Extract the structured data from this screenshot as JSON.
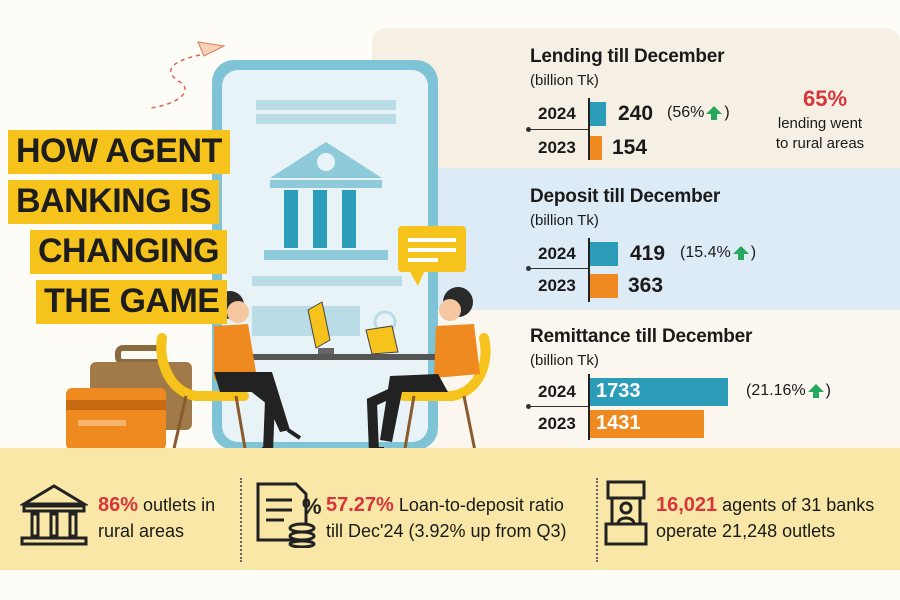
{
  "headline": [
    "HOW AGENT",
    "BANKING IS",
    "CHANGING",
    "THE GAME"
  ],
  "lending": {
    "title": "Lending till December",
    "unit": "(billion Tk)",
    "rows": [
      {
        "year": "2024",
        "value": "240",
        "change": "(56%",
        "close": ")"
      },
      {
        "year": "2023",
        "value": "154"
      }
    ]
  },
  "rural_callout": {
    "pct": "65%",
    "text_line1": "lending went",
    "text_line2": "to rural areas"
  },
  "deposit": {
    "title": "Deposit till December",
    "unit": "(billion Tk)",
    "rows": [
      {
        "year": "2024",
        "value": "419",
        "change": "(15.4%",
        "close": ")"
      },
      {
        "year": "2023",
        "value": "363"
      }
    ]
  },
  "remittance": {
    "title": "Remittance till December",
    "unit": "(billion Tk)",
    "rows": [
      {
        "year": "2024",
        "value": "1733",
        "change": "(21.16%",
        "close": ")"
      },
      {
        "year": "2023",
        "value": "1431"
      }
    ]
  },
  "stats": [
    {
      "highlight": "86%",
      "line1": " outlets in",
      "line2": "rural areas"
    },
    {
      "highlight": "57.27%",
      "line1": " Loan-to-deposit ratio",
      "line2": "till Dec'24 (3.92% up from Q3)"
    },
    {
      "highlight": "16,021",
      "line1": " agents of 31 banks",
      "line2": "operate 21,248 outlets"
    }
  ],
  "colors": {
    "accent_yellow": "#f6c21c",
    "bar_blue": "#2c9db8",
    "bar_orange": "#ee8a1f",
    "highlight_red": "#d9343a",
    "up_green": "#27a85f"
  },
  "icons": [
    "paper-plane-icon",
    "bank-building-icon",
    "chat-bubble-icon",
    "briefcase-icon",
    "credit-card-icon",
    "document-coins-icon",
    "agent-kiosk-icon",
    "arrow-up-icon"
  ]
}
